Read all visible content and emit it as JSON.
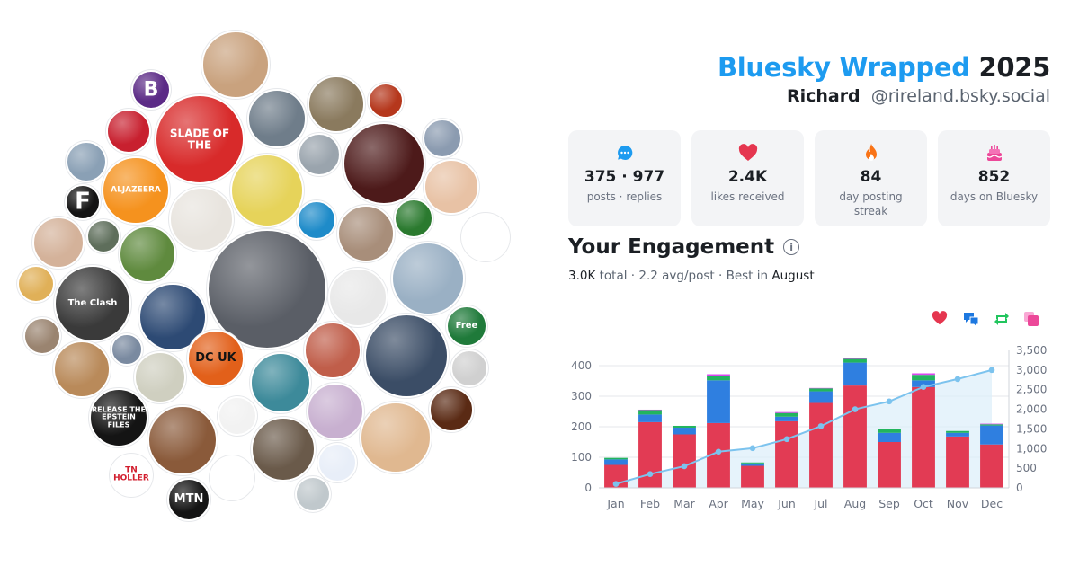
{
  "header": {
    "brand": "Bluesky Wrapped",
    "year": "2025",
    "name": "Richard",
    "handle": "@rireland.bsky.social"
  },
  "stats": [
    {
      "icon": "chat-bubble-icon",
      "color": "#1d9bf0",
      "value": "375 · 977",
      "label": "posts · replies"
    },
    {
      "icon": "heart-icon",
      "color": "#e5364f",
      "value": "2.4K",
      "label": "likes received"
    },
    {
      "icon": "flame-icon",
      "color": "#f97316",
      "value": "84",
      "label": "day posting streak"
    },
    {
      "icon": "cake-icon",
      "color": "#ec4899",
      "value": "852",
      "label": "days on Bluesky"
    }
  ],
  "engagement": {
    "title": "Your Engagement",
    "total": "3.0K",
    "total_word": "total",
    "avg": "2.2 avg/post",
    "best_label": "Best in",
    "best_month": "August"
  },
  "legend": [
    {
      "icon": "heart-icon",
      "color": "#e5364f"
    },
    {
      "icon": "reply-icon",
      "color": "#1d78e0"
    },
    {
      "icon": "repost-icon",
      "color": "#22c55e"
    },
    {
      "icon": "quote-icon",
      "color": "#ec4899"
    }
  ],
  "avatar_labels": {
    "slade": "SLADE OF THE",
    "aljazeera": "ALJAZEERA",
    "dcuk": "DC UK",
    "release": "RELEASE THE EPSTEIN FILES",
    "mtn": "MTN",
    "tnholler": "TN HOLLER",
    "clash": "The Clash",
    "free": "Free",
    "f": "F",
    "b": "B"
  },
  "chart_data": {
    "type": "bar",
    "stacked": true,
    "categories": [
      "Jan",
      "Feb",
      "Mar",
      "Apr",
      "May",
      "Jun",
      "Jul",
      "Aug",
      "Sep",
      "Oct",
      "Nov",
      "Dec"
    ],
    "series": [
      {
        "name": "likes",
        "color": "#e23b54",
        "values": [
          75,
          215,
          175,
          212,
          72,
          218,
          278,
          335,
          150,
          330,
          168,
          142
        ]
      },
      {
        "name": "replies",
        "color": "#2f7fe0",
        "values": [
          18,
          25,
          22,
          140,
          8,
          15,
          38,
          75,
          30,
          22,
          12,
          62
        ]
      },
      {
        "name": "reposts",
        "color": "#22b55e",
        "values": [
          5,
          15,
          6,
          15,
          3,
          12,
          10,
          12,
          12,
          18,
          6,
          4
        ]
      },
      {
        "name": "quotes",
        "color": "#d946ef",
        "values": [
          0,
          1,
          0,
          5,
          0,
          3,
          1,
          3,
          2,
          5,
          0,
          2
        ]
      }
    ],
    "cumulative": [
      100,
      350,
      550,
      920,
      1010,
      1240,
      1570,
      2000,
      2200,
      2570,
      2770,
      3000
    ],
    "ylim_left": [
      0,
      450
    ],
    "yticks_left": [
      0,
      100,
      200,
      300,
      400
    ],
    "ylim_right": [
      0,
      3500
    ],
    "yticks_right": [
      "0",
      "500",
      "1,000",
      "1,500",
      "2,000",
      "2,500",
      "3,000",
      "3,500"
    ],
    "grid": true
  }
}
